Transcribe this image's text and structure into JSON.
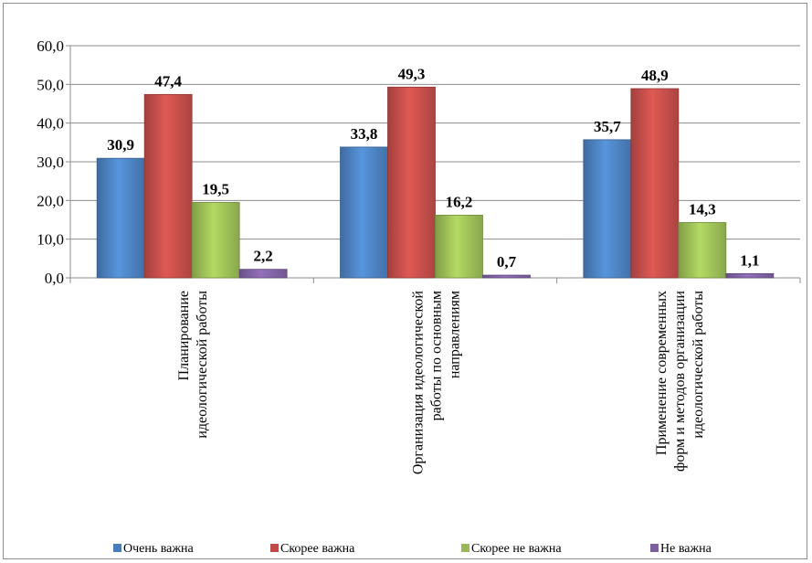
{
  "chart_data": {
    "type": "bar",
    "categories": [
      [
        "Планирование",
        "идеологической работы"
      ],
      [
        "Организация идеологической",
        "работы по основным",
        "направлениям"
      ],
      [
        "Применение современных",
        "форм и методов организации",
        "идеологической работы"
      ]
    ],
    "series": [
      {
        "name": "Очень важна",
        "values": [
          30.9,
          33.8,
          35.7
        ],
        "color": "#4a7ebb"
      },
      {
        "name": "Скорее важна",
        "values": [
          47.4,
          49.3,
          48.9
        ],
        "color": "#be4b48"
      },
      {
        "name": "Скорее не важна",
        "values": [
          19.5,
          16.2,
          14.3
        ],
        "color": "#98b954"
      },
      {
        "name": "Не важна",
        "values": [
          2.2,
          0.7,
          1.1
        ],
        "color": "#7d5fa0"
      }
    ],
    "data_labels": [
      [
        "30,9",
        "33,8",
        "35,7"
      ],
      [
        "47,4",
        "49,3",
        "48,9"
      ],
      [
        "19,5",
        "16,2",
        "14,3"
      ],
      [
        "2,2",
        "0,7",
        "1,1"
      ]
    ],
    "y_ticks": [
      "0,0",
      "10,0",
      "20,0",
      "30,0",
      "40,0",
      "50,0",
      "60,0"
    ],
    "ylim": [
      0,
      60
    ],
    "grid": true,
    "legend_position": "bottom",
    "title": "",
    "xlabel": "",
    "ylabel": ""
  }
}
